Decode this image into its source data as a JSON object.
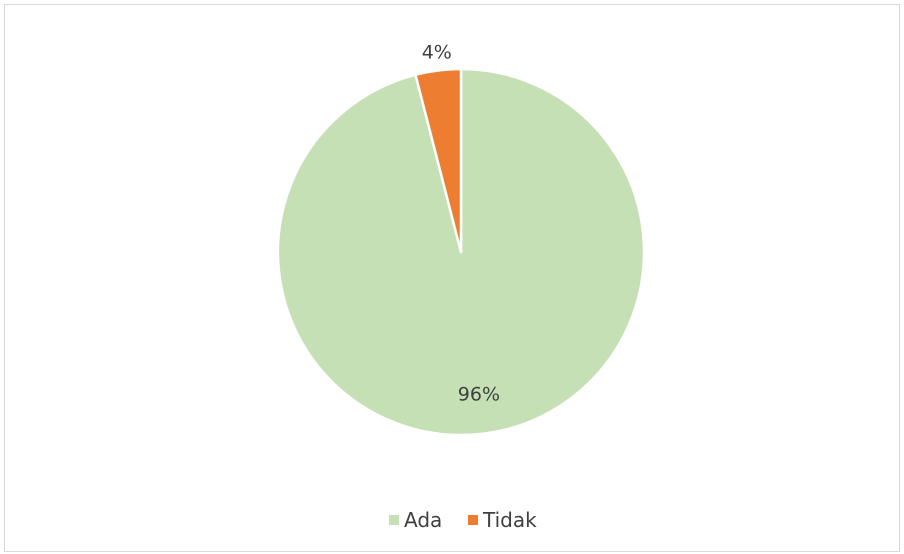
{
  "chart_data": {
    "type": "pie",
    "categories": [
      "Ada",
      "Tidak"
    ],
    "values": [
      96,
      4
    ],
    "data_labels": [
      "96%",
      "4%"
    ],
    "colors": [
      "#c5e0b4",
      "#ed7d31"
    ],
    "start_angle_deg": 0,
    "direction": "clockwise",
    "legend": {
      "position": "bottom",
      "entries": [
        "Ada",
        "Tidak"
      ]
    }
  }
}
